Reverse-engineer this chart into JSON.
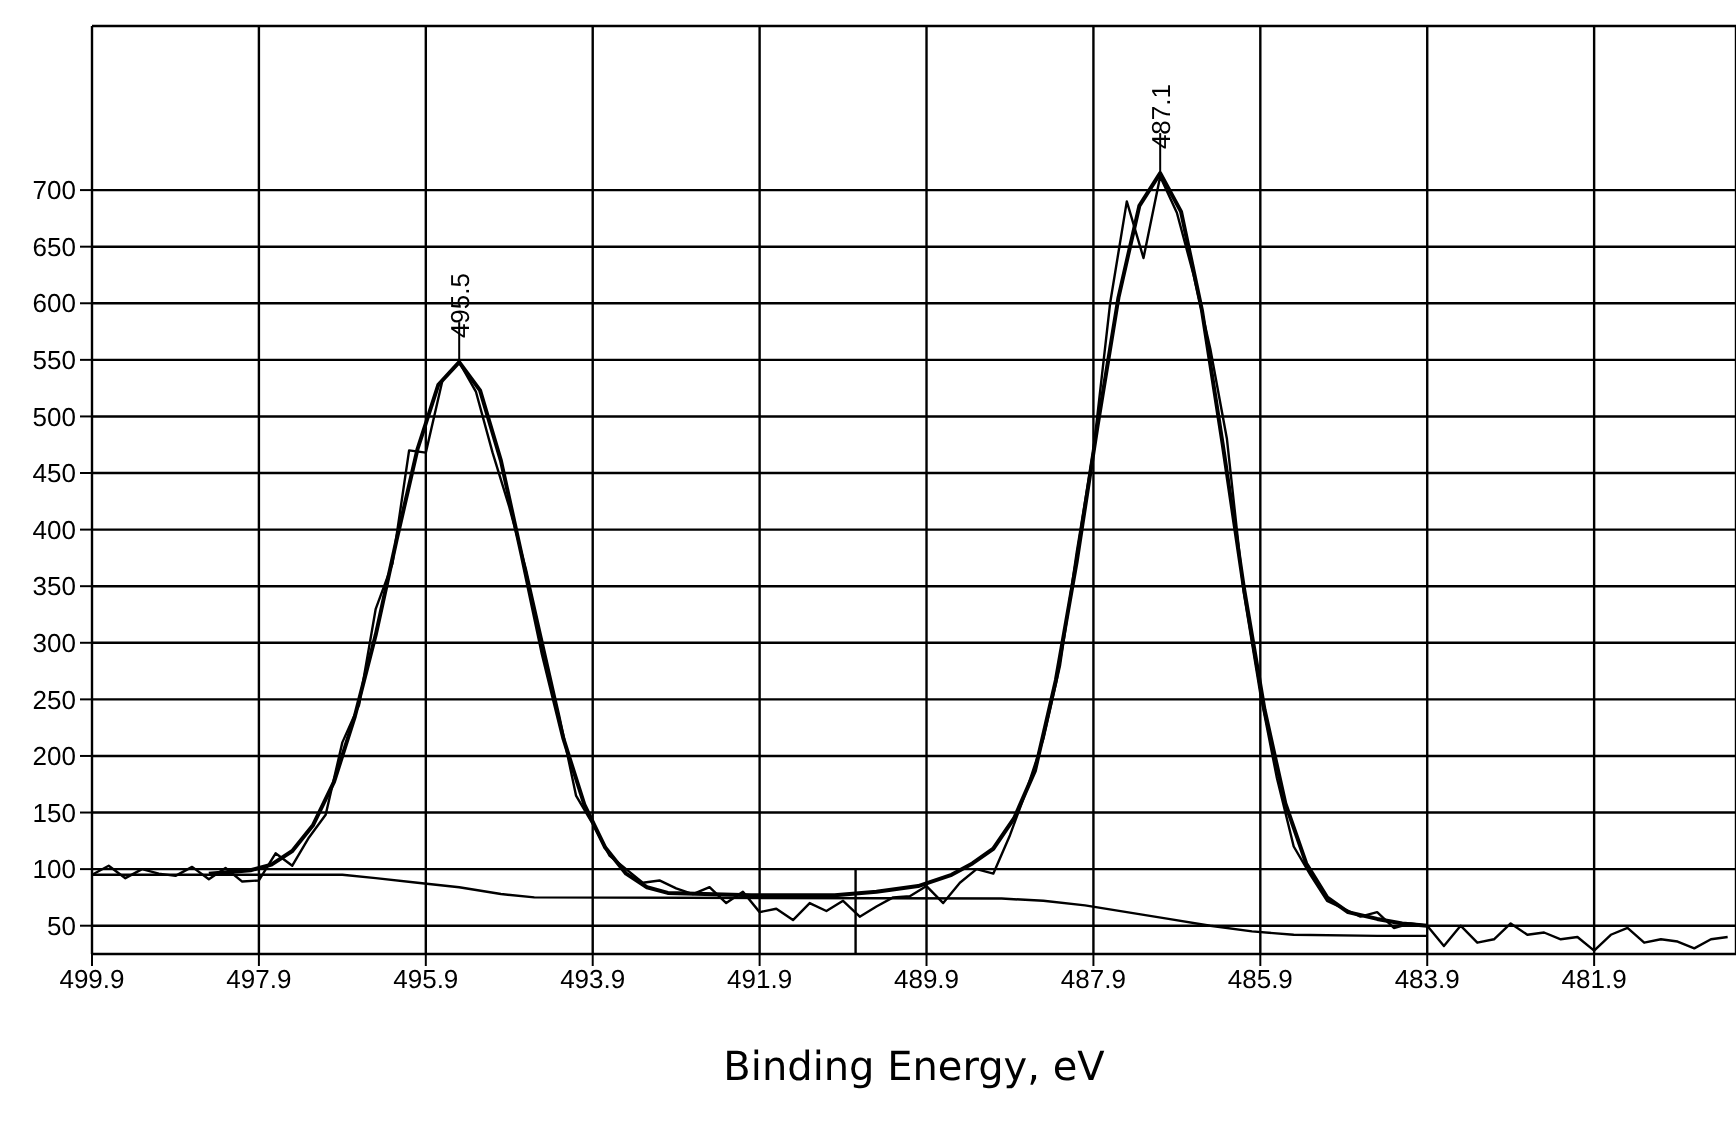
{
  "chart_data": {
    "type": "line",
    "xlabel": "Binding Energy, eV",
    "xlim": [
      499.9,
      480.2
    ],
    "xticks": [
      499.9,
      497.9,
      495.9,
      493.9,
      491.9,
      489.9,
      487.9,
      485.9,
      483.9,
      481.9
    ],
    "ylim": [
      25,
      845
    ],
    "yticks": [
      50,
      100,
      150,
      200,
      250,
      300,
      350,
      400,
      450,
      500,
      550,
      600,
      650,
      700
    ],
    "grid": true,
    "marker": "none",
    "line_style": "solid",
    "annotations": [
      {
        "text": "495.5",
        "x": 495.5,
        "y": 548
      },
      {
        "text": "487.1",
        "x": 487.1,
        "y": 715
      }
    ],
    "series": [
      {
        "color": "#000000",
        "x": [
          499.9,
          499.7,
          499.5,
          499.3,
          499.1,
          498.9,
          498.7,
          498.5,
          498.3,
          498.1,
          497.9,
          497.7,
          497.5,
          497.3,
          497.1,
          496.9,
          496.7,
          496.5,
          496.3,
          496.1,
          495.9,
          495.7,
          495.5,
          495.3,
          495.1,
          494.9,
          494.7,
          494.5,
          494.3,
          494.1,
          493.9,
          493.7,
          493.5,
          493.3,
          493.1,
          492.9,
          492.7,
          492.5,
          492.3,
          492.1,
          491.9,
          491.7,
          491.5,
          491.3,
          491.1,
          490.9,
          490.7,
          490.5,
          490.3,
          490.1,
          489.9,
          489.7,
          489.5,
          489.3,
          489.1,
          488.9,
          488.7,
          488.5,
          488.3,
          488.1,
          487.9,
          487.7,
          487.5,
          487.3,
          487.1,
          486.9,
          486.7,
          486.5,
          486.3,
          486.1,
          485.9,
          485.7,
          485.5,
          485.3,
          485.1,
          484.9,
          484.7,
          484.5,
          484.3,
          484.1,
          483.9,
          483.7,
          483.5,
          483.3,
          483.1,
          482.9,
          482.7,
          482.5,
          482.3,
          482.1,
          481.9,
          481.7,
          481.5,
          481.3,
          481.1,
          480.9,
          480.7,
          480.5,
          480.3
        ],
        "values": [
          95,
          103,
          92,
          100,
          96,
          94,
          102,
          91,
          101,
          89,
          90,
          114,
          103,
          128,
          148,
          212,
          245,
          330,
          370,
          470,
          468,
          532,
          548,
          522,
          468,
          420,
          365,
          300,
          235,
          165,
          140,
          112,
          100,
          88,
          90,
          83,
          78,
          84,
          70,
          80,
          62,
          65,
          55,
          70,
          63,
          72,
          58,
          67,
          75,
          76,
          85,
          70,
          88,
          100,
          96,
          130,
          170,
          215,
          280,
          380,
          470,
          600,
          690,
          640,
          712,
          680,
          625,
          560,
          480,
          345,
          255,
          180,
          120,
          95,
          72,
          65,
          58,
          62,
          48,
          52,
          50,
          32,
          50,
          35,
          38,
          52,
          42,
          44,
          38,
          40,
          28,
          42,
          48,
          35,
          38,
          36,
          30,
          38,
          40
        ]
      },
      {
        "color": "#000000",
        "x": [
          498.5,
          498.0,
          497.75,
          497.5,
          497.25,
          497.0,
          496.75,
          496.5,
          496.25,
          496.0,
          495.75,
          495.5,
          495.25,
          495.0,
          494.75,
          494.5,
          494.25,
          494.0,
          493.75,
          493.5,
          493.25,
          493.0,
          492.0,
          491.0,
          490.5,
          490.0,
          489.6,
          489.35,
          489.1,
          488.85,
          488.6,
          488.35,
          488.1,
          487.85,
          487.6,
          487.35,
          487.1,
          486.85,
          486.6,
          486.35,
          486.1,
          485.85,
          485.6,
          485.35,
          485.1,
          484.85,
          484.5,
          484.2,
          483.9
        ],
        "values": [
          96,
          99,
          104,
          116,
          139,
          177,
          235,
          307,
          391,
          471,
          528,
          548,
          523,
          461,
          377,
          290,
          215,
          157,
          119,
          96,
          84,
          79,
          77,
          77,
          80,
          85,
          95,
          105,
          118,
          145,
          187,
          267,
          372,
          492,
          605,
          686,
          715,
          681,
          594,
          475,
          350,
          241,
          158,
          105,
          75,
          62,
          56,
          52,
          50
        ]
      },
      {
        "color": "#000000",
        "x": [
          499.9,
          497.5,
          496.9,
          496.5,
          496.0,
          495.5,
          495.0,
          494.6,
          489.0,
          488.5,
          488.0,
          487.5,
          487.0,
          486.5,
          486.0,
          485.5,
          484.5,
          483.9
        ],
        "values": [
          95,
          95,
          95,
          92,
          88,
          84,
          78,
          75,
          74,
          72,
          68,
          62,
          56,
          50,
          45,
          42,
          41,
          41
        ]
      },
      {
        "color": "#000000",
        "x": [
          490.75,
          490.75
        ],
        "values": [
          25,
          100
        ]
      }
    ]
  }
}
